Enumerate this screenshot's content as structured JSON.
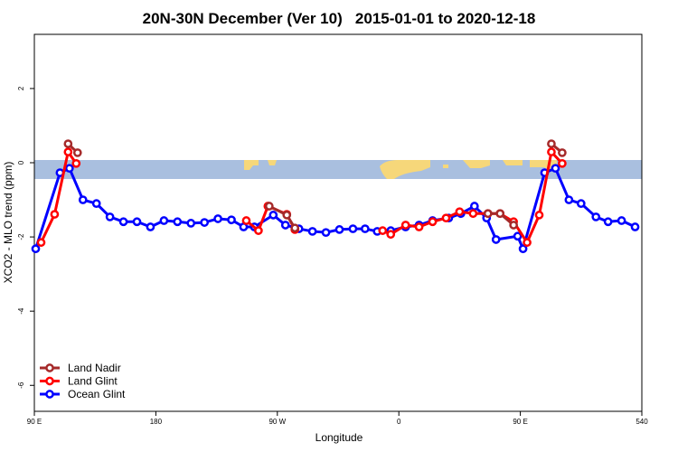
{
  "chart_data": {
    "type": "line",
    "title": "20N-30N December (Ver 10)   2015-01-01 to 2020-12-18",
    "x_label": "Longitude",
    "y_label": "XCO2 - MLO trend (ppm)",
    "xlim": [
      90,
      540
    ],
    "ylim": [
      -6.7,
      3.46
    ],
    "xticks": [
      {
        "value": 90,
        "label": "90 E"
      },
      180,
      {
        "value": 270,
        "label": "90 W"
      },
      {
        "value": 360,
        "label": "0"
      },
      {
        "value": 450,
        "label": "90 E"
      },
      540
    ],
    "yticks": [
      2,
      0,
      -2,
      -4,
      -6
    ],
    "legend": "bottom-left",
    "series": [
      {
        "name": "Land Nadir",
        "color": "#a52a2a",
        "x": [
          115,
          122,
          200,
          264,
          277,
          283,
          400,
          426,
          435,
          445,
          460,
          473,
          481
        ],
        "values": [
          0.51,
          0.27,
          null,
          -1.17,
          -1.41,
          -1.76,
          null,
          -1.37,
          -1.37,
          -1.68,
          null,
          0.51,
          0.27
        ]
      },
      {
        "name": "Land Glint",
        "color": "#ff0000",
        "x": [
          95,
          105,
          115,
          121,
          200,
          247,
          256,
          263,
          277,
          283,
          320,
          348,
          354,
          365,
          375,
          385,
          395,
          405,
          415,
          426,
          435,
          445,
          455,
          464,
          473,
          481
        ],
        "values": [
          -2.15,
          -1.39,
          0.29,
          -0.02,
          null,
          -1.56,
          -1.83,
          -1.17,
          -1.39,
          -1.8,
          null,
          -1.83,
          -1.93,
          -1.68,
          -1.73,
          -1.59,
          -1.49,
          -1.32,
          -1.37,
          -1.37,
          -1.37,
          -1.59,
          -2.15,
          -1.41,
          0.29,
          -0.02
        ]
      },
      {
        "name": "Ocean Glint",
        "color": "#0000ff",
        "x": [
          91,
          109,
          116,
          126,
          136,
          146,
          156,
          166,
          176,
          186,
          196,
          206,
          216,
          226,
          236,
          245,
          253,
          267,
          276,
          286,
          296,
          306,
          316,
          326,
          335,
          344,
          354,
          365,
          375,
          385,
          397,
          406,
          416,
          425,
          432,
          448,
          452,
          468,
          476,
          486,
          495,
          506,
          515,
          525,
          535
        ],
        "values": [
          -2.32,
          -0.27,
          -0.15,
          -1.0,
          -1.1,
          -1.46,
          -1.59,
          -1.59,
          -1.73,
          -1.56,
          -1.59,
          -1.63,
          -1.61,
          -1.51,
          -1.54,
          -1.73,
          -1.73,
          -1.41,
          -1.68,
          -1.78,
          -1.85,
          -1.88,
          -1.8,
          -1.78,
          -1.78,
          -1.85,
          -1.83,
          -1.73,
          -1.68,
          -1.56,
          -1.49,
          -1.37,
          -1.17,
          -1.49,
          -2.07,
          -1.98,
          -2.32,
          -0.27,
          -0.15,
          -1.0,
          -1.1,
          -1.46,
          -1.59,
          -1.56,
          -1.73
        ]
      }
    ]
  }
}
